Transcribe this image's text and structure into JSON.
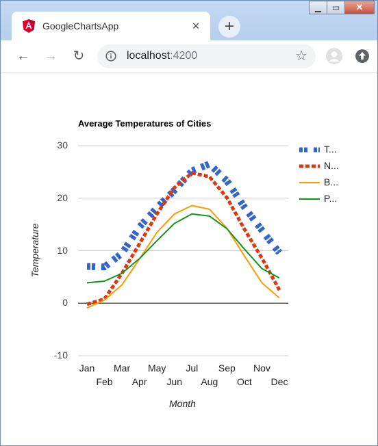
{
  "browser": {
    "tab_title": "GoogleChartsApp",
    "tab_close": "×",
    "new_tab": "+",
    "url_host": "localhost",
    "url_port": ":4200",
    "window_controls": {
      "minimize": "▁",
      "maximize": "▭",
      "close": "✕"
    },
    "nav": {
      "back": "←",
      "forward": "→",
      "reload": "↻"
    },
    "star": "☆"
  },
  "chart_data": {
    "type": "line",
    "title": "Average Temperatures of Cities",
    "xlabel": "Month",
    "ylabel": "Temperature",
    "ylim": [
      -10,
      30
    ],
    "y_ticks": [
      "30",
      "20",
      "10",
      "0",
      "-10"
    ],
    "categories": [
      "Jan",
      "Feb",
      "Mar",
      "Apr",
      "May",
      "Jun",
      "Jul",
      "Aug",
      "Sep",
      "Oct",
      "Nov",
      "Dec"
    ],
    "grid": true,
    "legend_position": "right",
    "series": [
      {
        "name": "T...",
        "color": "#3366cc",
        "values": [
          7.0,
          6.9,
          9.5,
          14.5,
          18.2,
          21.5,
          25.2,
          26.5,
          23.3,
          18.3,
          13.9,
          9.6
        ]
      },
      {
        "name": "N...",
        "color": "#dc3912",
        "values": [
          -0.2,
          0.8,
          5.7,
          11.3,
          17.0,
          22.0,
          24.8,
          24.1,
          20.1,
          14.1,
          8.6,
          2.5
        ]
      },
      {
        "name": "B...",
        "color": "#ff9900",
        "values": [
          -0.9,
          0.6,
          3.5,
          8.4,
          13.5,
          17.0,
          18.6,
          17.9,
          14.3,
          9.0,
          3.9,
          1.0
        ]
      },
      {
        "name": "P...",
        "color": "#109618",
        "values": [
          3.9,
          4.2,
          5.7,
          8.5,
          11.9,
          15.2,
          17.0,
          16.6,
          14.2,
          10.3,
          6.6,
          4.8
        ]
      }
    ]
  }
}
